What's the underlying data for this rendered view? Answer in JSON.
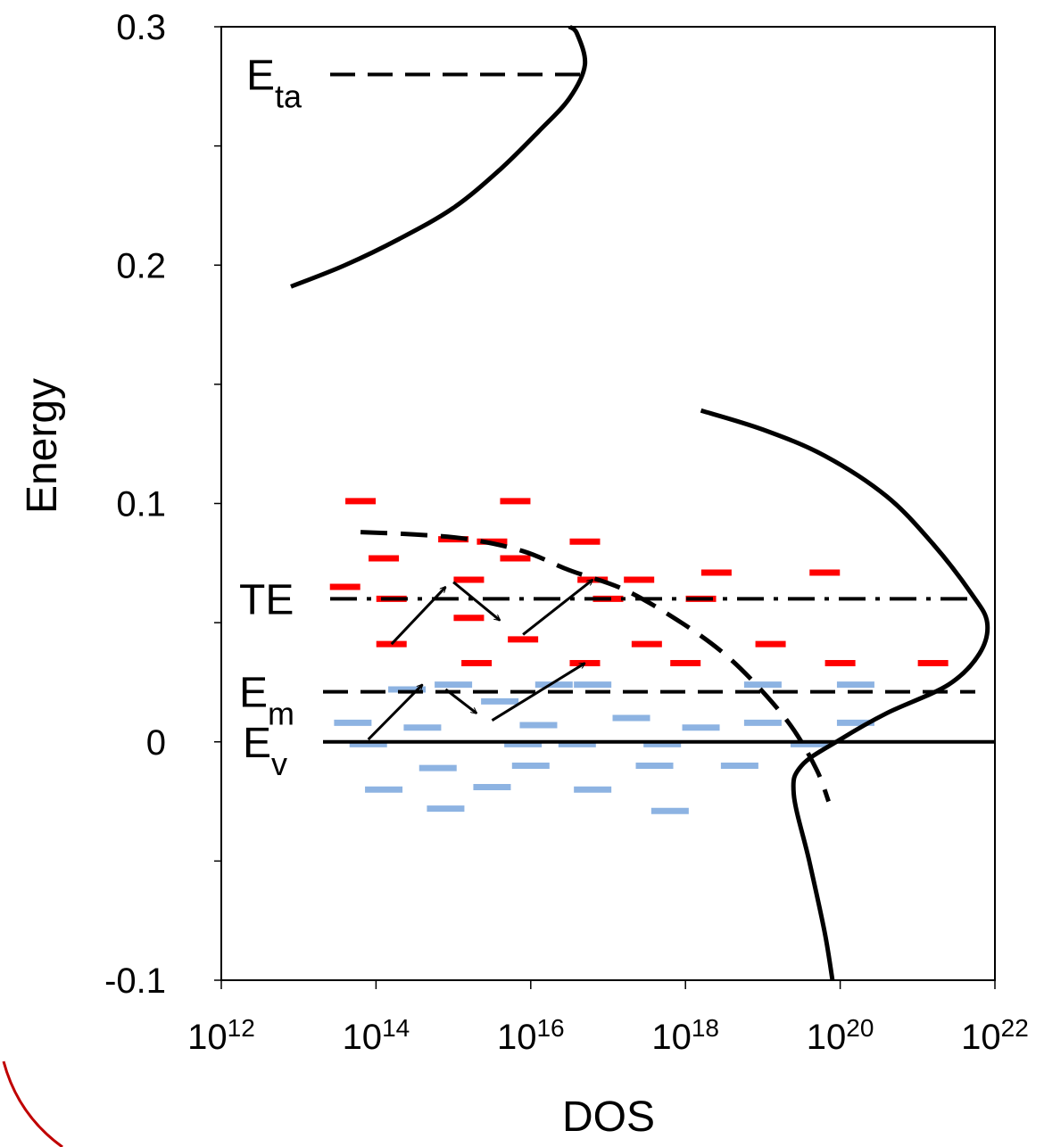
{
  "chart_data": {
    "type": "line",
    "title": "",
    "xlabel": "DOS",
    "ylabel": "Energy",
    "xscale": "log",
    "xlim_exponent": [
      12,
      22
    ],
    "ylim": [
      -0.1,
      0.3
    ],
    "x_ticks": [
      {
        "base": "10",
        "exp": "12"
      },
      {
        "base": "10",
        "exp": "14"
      },
      {
        "base": "10",
        "exp": "16"
      },
      {
        "base": "10",
        "exp": "18"
      },
      {
        "base": "10",
        "exp": "20"
      },
      {
        "base": "10",
        "exp": "22"
      }
    ],
    "y_ticks": [
      "-0.1",
      "0",
      "0.1",
      "0.2",
      "0.3"
    ],
    "grid": false,
    "colors": {
      "curve": "#000000",
      "above_em": "#ff0000",
      "below_em": "#8db3e2",
      "arrow": "#000000",
      "decor_arc": "#c00000"
    },
    "levels": [
      {
        "main": "E",
        "sub": "ta",
        "energy": 0.28,
        "style": "dashed"
      },
      {
        "main": "TE",
        "sub": "",
        "energy": 0.06,
        "style": "dash-dot"
      },
      {
        "main": "E",
        "sub": "m",
        "energy": 0.021,
        "style": "dashed"
      },
      {
        "main": "E",
        "sub": "v",
        "energy": 0.0,
        "style": "solid"
      }
    ],
    "curves": [
      {
        "style": "solid",
        "points": [
          [
            12.9,
            0.191
          ],
          [
            13.6,
            0.2
          ],
          [
            14.3,
            0.211
          ],
          [
            15.0,
            0.224
          ],
          [
            15.6,
            0.24
          ],
          [
            16.1,
            0.256
          ],
          [
            16.5,
            0.27
          ],
          [
            16.7,
            0.284
          ],
          [
            16.6,
            0.297
          ],
          [
            16.5,
            0.3
          ]
        ]
      },
      {
        "style": "solid",
        "points": [
          [
            18.2,
            0.139
          ],
          [
            19.0,
            0.131
          ],
          [
            19.8,
            0.12
          ],
          [
            20.6,
            0.103
          ],
          [
            21.2,
            0.083
          ],
          [
            21.7,
            0.062
          ],
          [
            21.9,
            0.05
          ],
          [
            21.8,
            0.037
          ],
          [
            21.4,
            0.024
          ],
          [
            20.6,
            0.012
          ],
          [
            20.0,
            0.001
          ],
          [
            19.5,
            -0.01
          ],
          [
            19.4,
            -0.022
          ],
          [
            19.6,
            -0.05
          ],
          [
            19.8,
            -0.08
          ],
          [
            19.9,
            -0.1
          ]
        ]
      },
      {
        "style": "dashed",
        "points": [
          [
            13.8,
            0.088
          ],
          [
            14.5,
            0.087
          ],
          [
            15.2,
            0.085
          ],
          [
            15.9,
            0.08
          ],
          [
            16.5,
            0.072
          ],
          [
            17.2,
            0.064
          ],
          [
            17.9,
            0.051
          ],
          [
            18.5,
            0.037
          ],
          [
            19.0,
            0.021
          ],
          [
            19.4,
            0.005
          ],
          [
            19.7,
            -0.012
          ],
          [
            19.85,
            -0.025
          ]
        ]
      }
    ],
    "states_above_em": [
      [
        13.8,
        0.101
      ],
      [
        15.8,
        0.101
      ],
      [
        15.5,
        0.084
      ],
      [
        16.7,
        0.084
      ],
      [
        14.1,
        0.077
      ],
      [
        15.8,
        0.077
      ],
      [
        15.0,
        0.085
      ],
      [
        13.6,
        0.065
      ],
      [
        15.2,
        0.068
      ],
      [
        16.8,
        0.068
      ],
      [
        17.4,
        0.068
      ],
      [
        18.4,
        0.071
      ],
      [
        19.8,
        0.071
      ],
      [
        14.2,
        0.06
      ],
      [
        17.0,
        0.06
      ],
      [
        18.2,
        0.06
      ],
      [
        15.2,
        0.052
      ],
      [
        15.9,
        0.043
      ],
      [
        14.2,
        0.041
      ],
      [
        17.5,
        0.041
      ],
      [
        19.1,
        0.041
      ],
      [
        15.3,
        0.033
      ],
      [
        16.7,
        0.033
      ],
      [
        18.0,
        0.033
      ],
      [
        20.0,
        0.033
      ],
      [
        21.2,
        0.033
      ]
    ],
    "states_below_em": [
      [
        15.0,
        0.024
      ],
      [
        16.3,
        0.024
      ],
      [
        16.8,
        0.024
      ],
      [
        19.0,
        0.024
      ],
      [
        20.2,
        0.024
      ],
      [
        13.7,
        0.008
      ],
      [
        14.6,
        0.006
      ],
      [
        17.3,
        0.01
      ],
      [
        18.2,
        0.006
      ],
      [
        19.0,
        0.008
      ],
      [
        20.2,
        0.008
      ],
      [
        15.6,
        0.017
      ],
      [
        14.4,
        0.022
      ],
      [
        16.1,
        0.007
      ],
      [
        13.9,
        -0.001
      ],
      [
        15.9,
        -0.001
      ],
      [
        16.6,
        -0.001
      ],
      [
        17.7,
        -0.001
      ],
      [
        19.6,
        -0.001
      ],
      [
        14.8,
        -0.011
      ],
      [
        16.0,
        -0.01
      ],
      [
        17.6,
        -0.01
      ],
      [
        18.7,
        -0.01
      ],
      [
        14.1,
        -0.02
      ],
      [
        15.5,
        -0.019
      ],
      [
        16.8,
        -0.02
      ],
      [
        14.9,
        -0.028
      ],
      [
        17.8,
        -0.029
      ]
    ],
    "arrows": [
      [
        [
          13.9,
          0.001
        ],
        [
          14.6,
          0.024
        ]
      ],
      [
        [
          14.9,
          0.022
        ],
        [
          15.3,
          0.012
        ]
      ],
      [
        [
          15.5,
          0.009
        ],
        [
          16.7,
          0.033
        ]
      ],
      [
        [
          14.2,
          0.041
        ],
        [
          14.9,
          0.065
        ]
      ],
      [
        [
          15.0,
          0.067
        ],
        [
          15.6,
          0.051
        ]
      ],
      [
        [
          15.9,
          0.045
        ],
        [
          16.8,
          0.068
        ]
      ]
    ]
  }
}
